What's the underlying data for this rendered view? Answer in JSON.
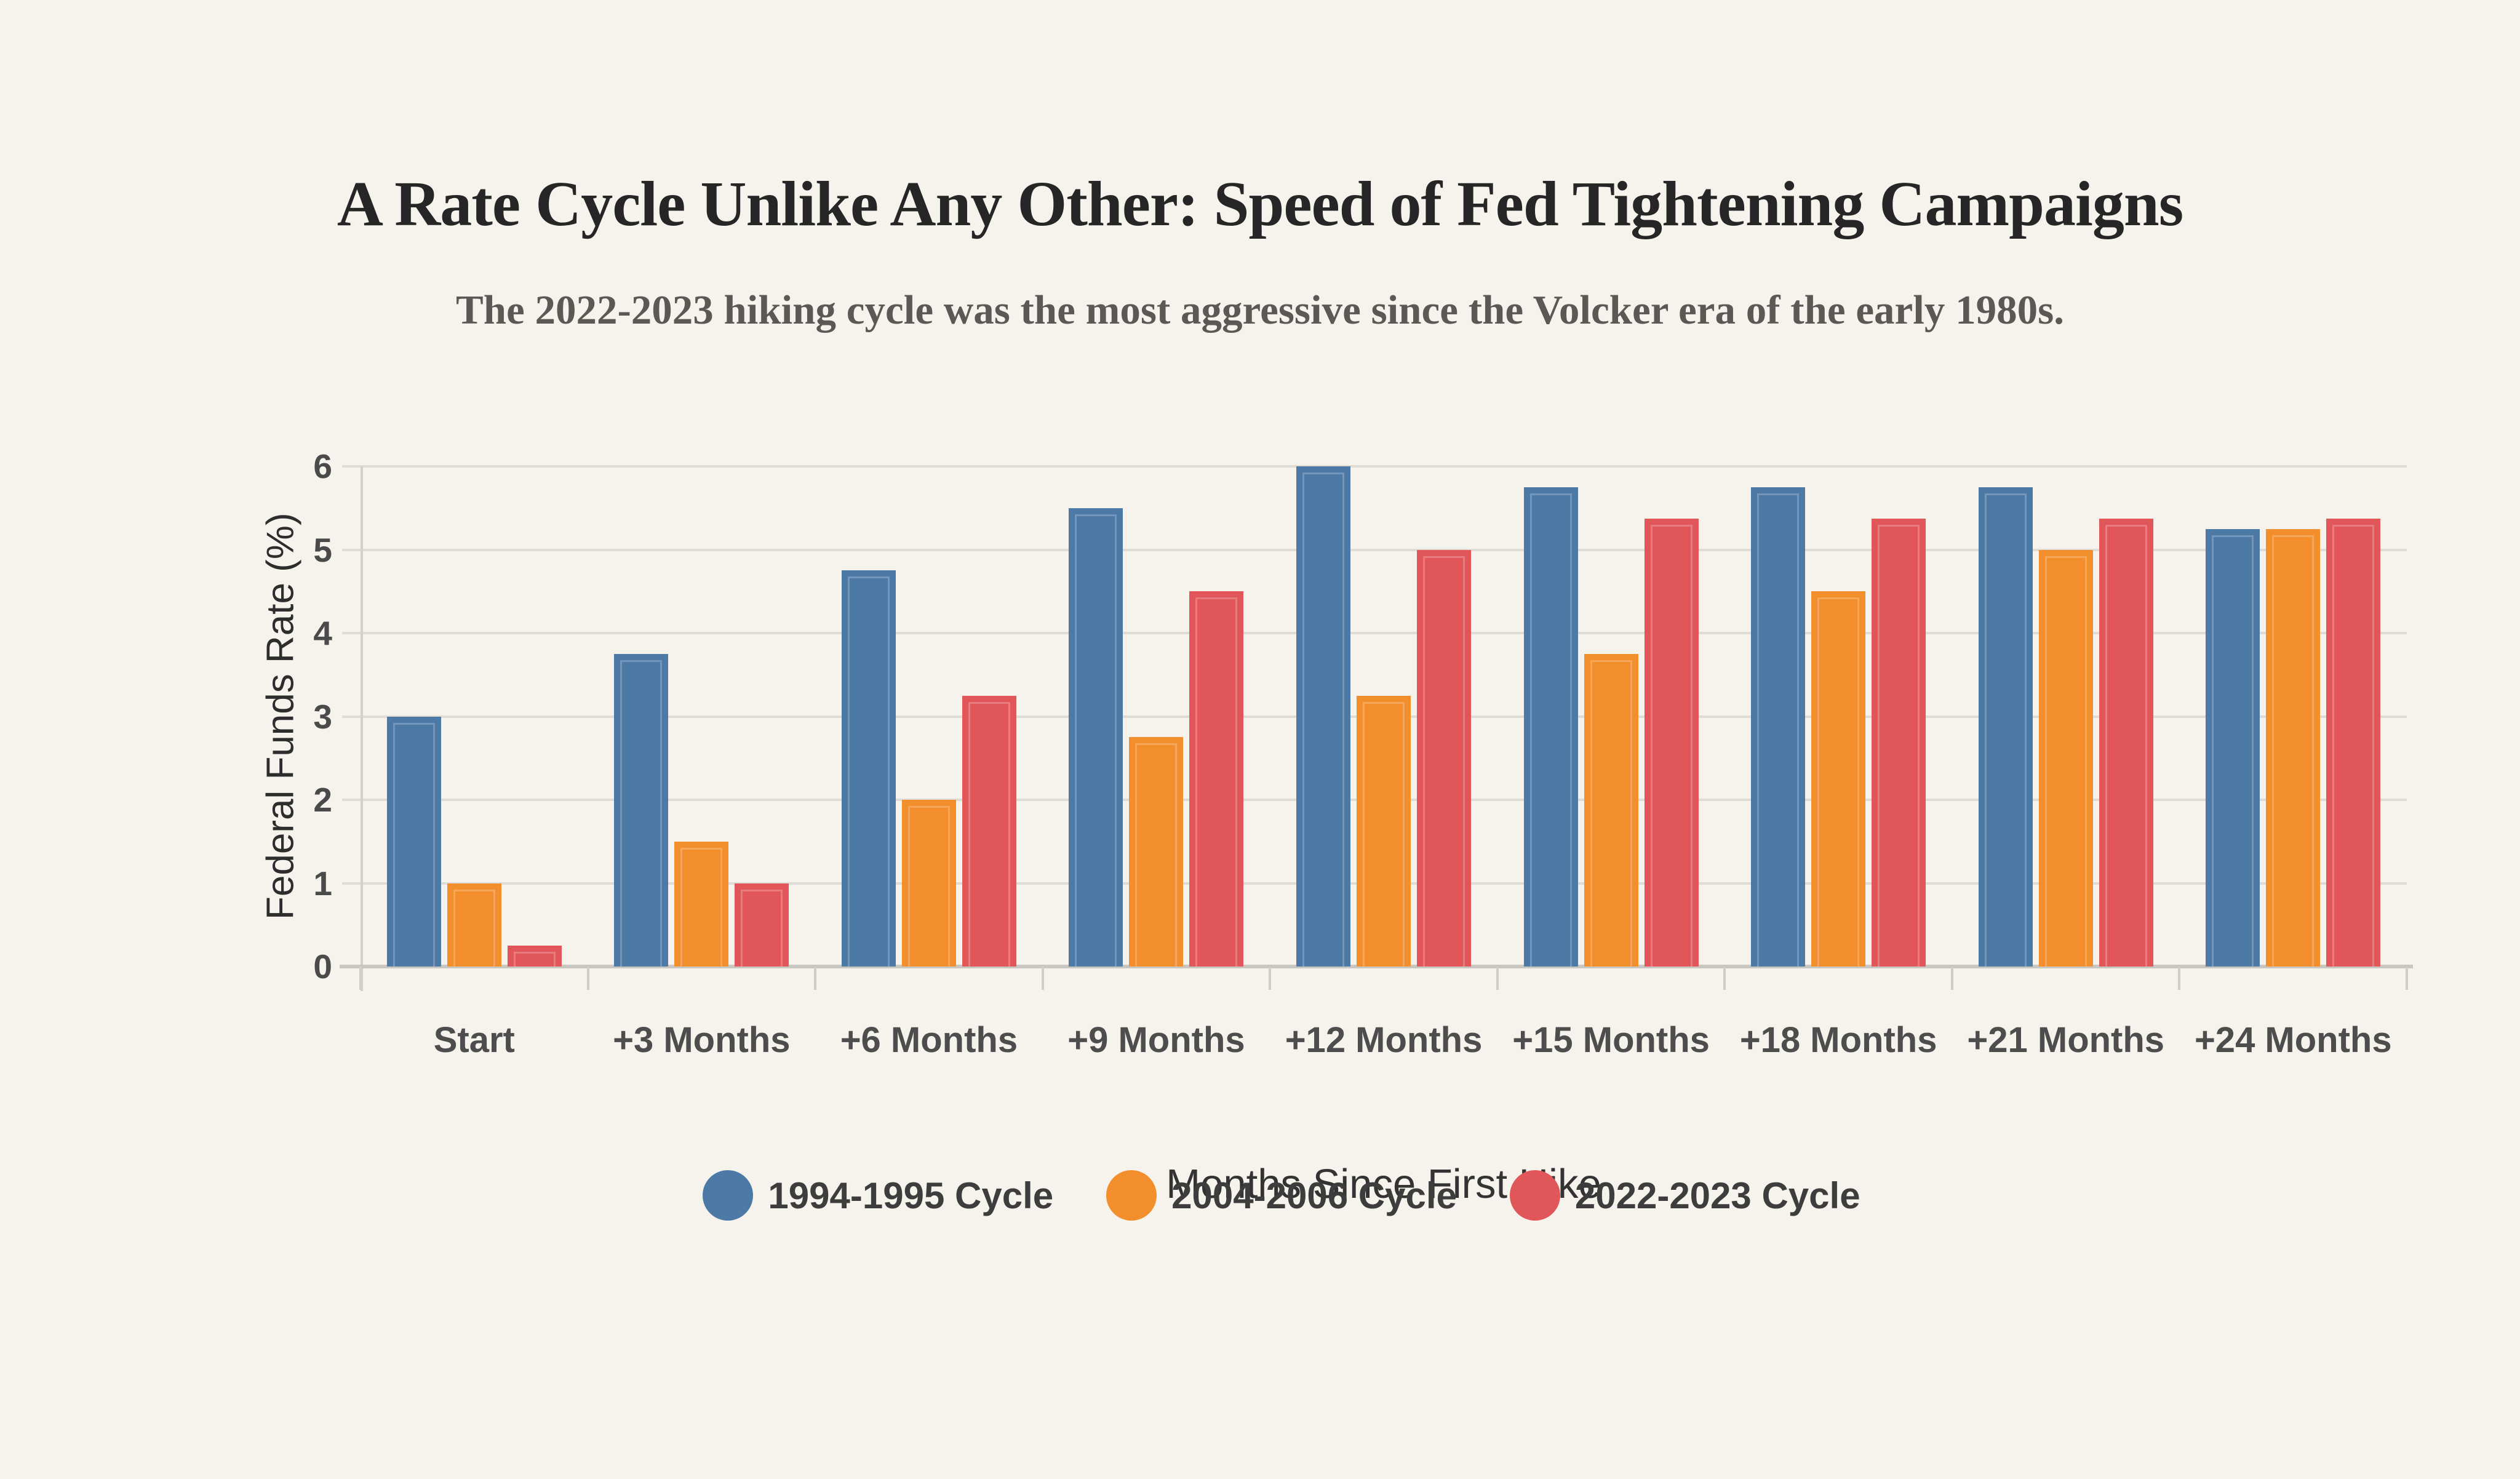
{
  "title": "A Rate Cycle Unlike Any Other: Speed of Fed Tightening Campaigns",
  "subtitle": "The 2022-2023 hiking cycle was the most aggressive since the Volcker era of the early 1980s.",
  "colors": {
    "background": "#f6f2ec",
    "title_text": "#262626",
    "subtitle_text": "#5b5955",
    "gridline": "#dfdcd5",
    "axis_line": "#c8c7c2",
    "tick_label": "#4a4a4a",
    "series_blue": "#4d79a7",
    "series_orange": "#f28e2b",
    "series_red": "#e15759"
  },
  "chart_data": {
    "type": "bar",
    "title": "A Rate Cycle Unlike Any Other: Speed of Fed Tightening Campaigns",
    "subtitle": "The 2022-2023 hiking cycle was the most aggressive since the Volcker era of the early 1980s.",
    "xlabel": "Months Since First Hike",
    "ylabel": "Federal Funds Rate (%)",
    "categories": [
      "Start",
      "+3 Months",
      "+6 Months",
      "+9 Months",
      "+12 Months",
      "+15 Months",
      "+18 Months",
      "+21 Months",
      "+24 Months"
    ],
    "series": [
      {
        "name": "1994-1995 Cycle",
        "color": "#4d79a7",
        "values": [
          3.0,
          3.75,
          4.75,
          5.5,
          6.0,
          5.75,
          5.75,
          5.75,
          5.25
        ]
      },
      {
        "name": "2004-2006 Cycle",
        "color": "#f28e2b",
        "values": [
          1.0,
          1.5,
          2.0,
          2.75,
          3.25,
          3.75,
          4.5,
          5.0,
          5.25
        ]
      },
      {
        "name": "2022-2023 Cycle",
        "color": "#e15759",
        "values": [
          0.25,
          1.0,
          3.25,
          4.5,
          5.0,
          5.375,
          5.375,
          5.375,
          5.375
        ]
      }
    ],
    "ylim": [
      0,
      6
    ],
    "yticks": [
      0,
      1,
      2,
      3,
      4,
      5,
      6
    ],
    "grid": true,
    "legend_position": "bottom"
  }
}
